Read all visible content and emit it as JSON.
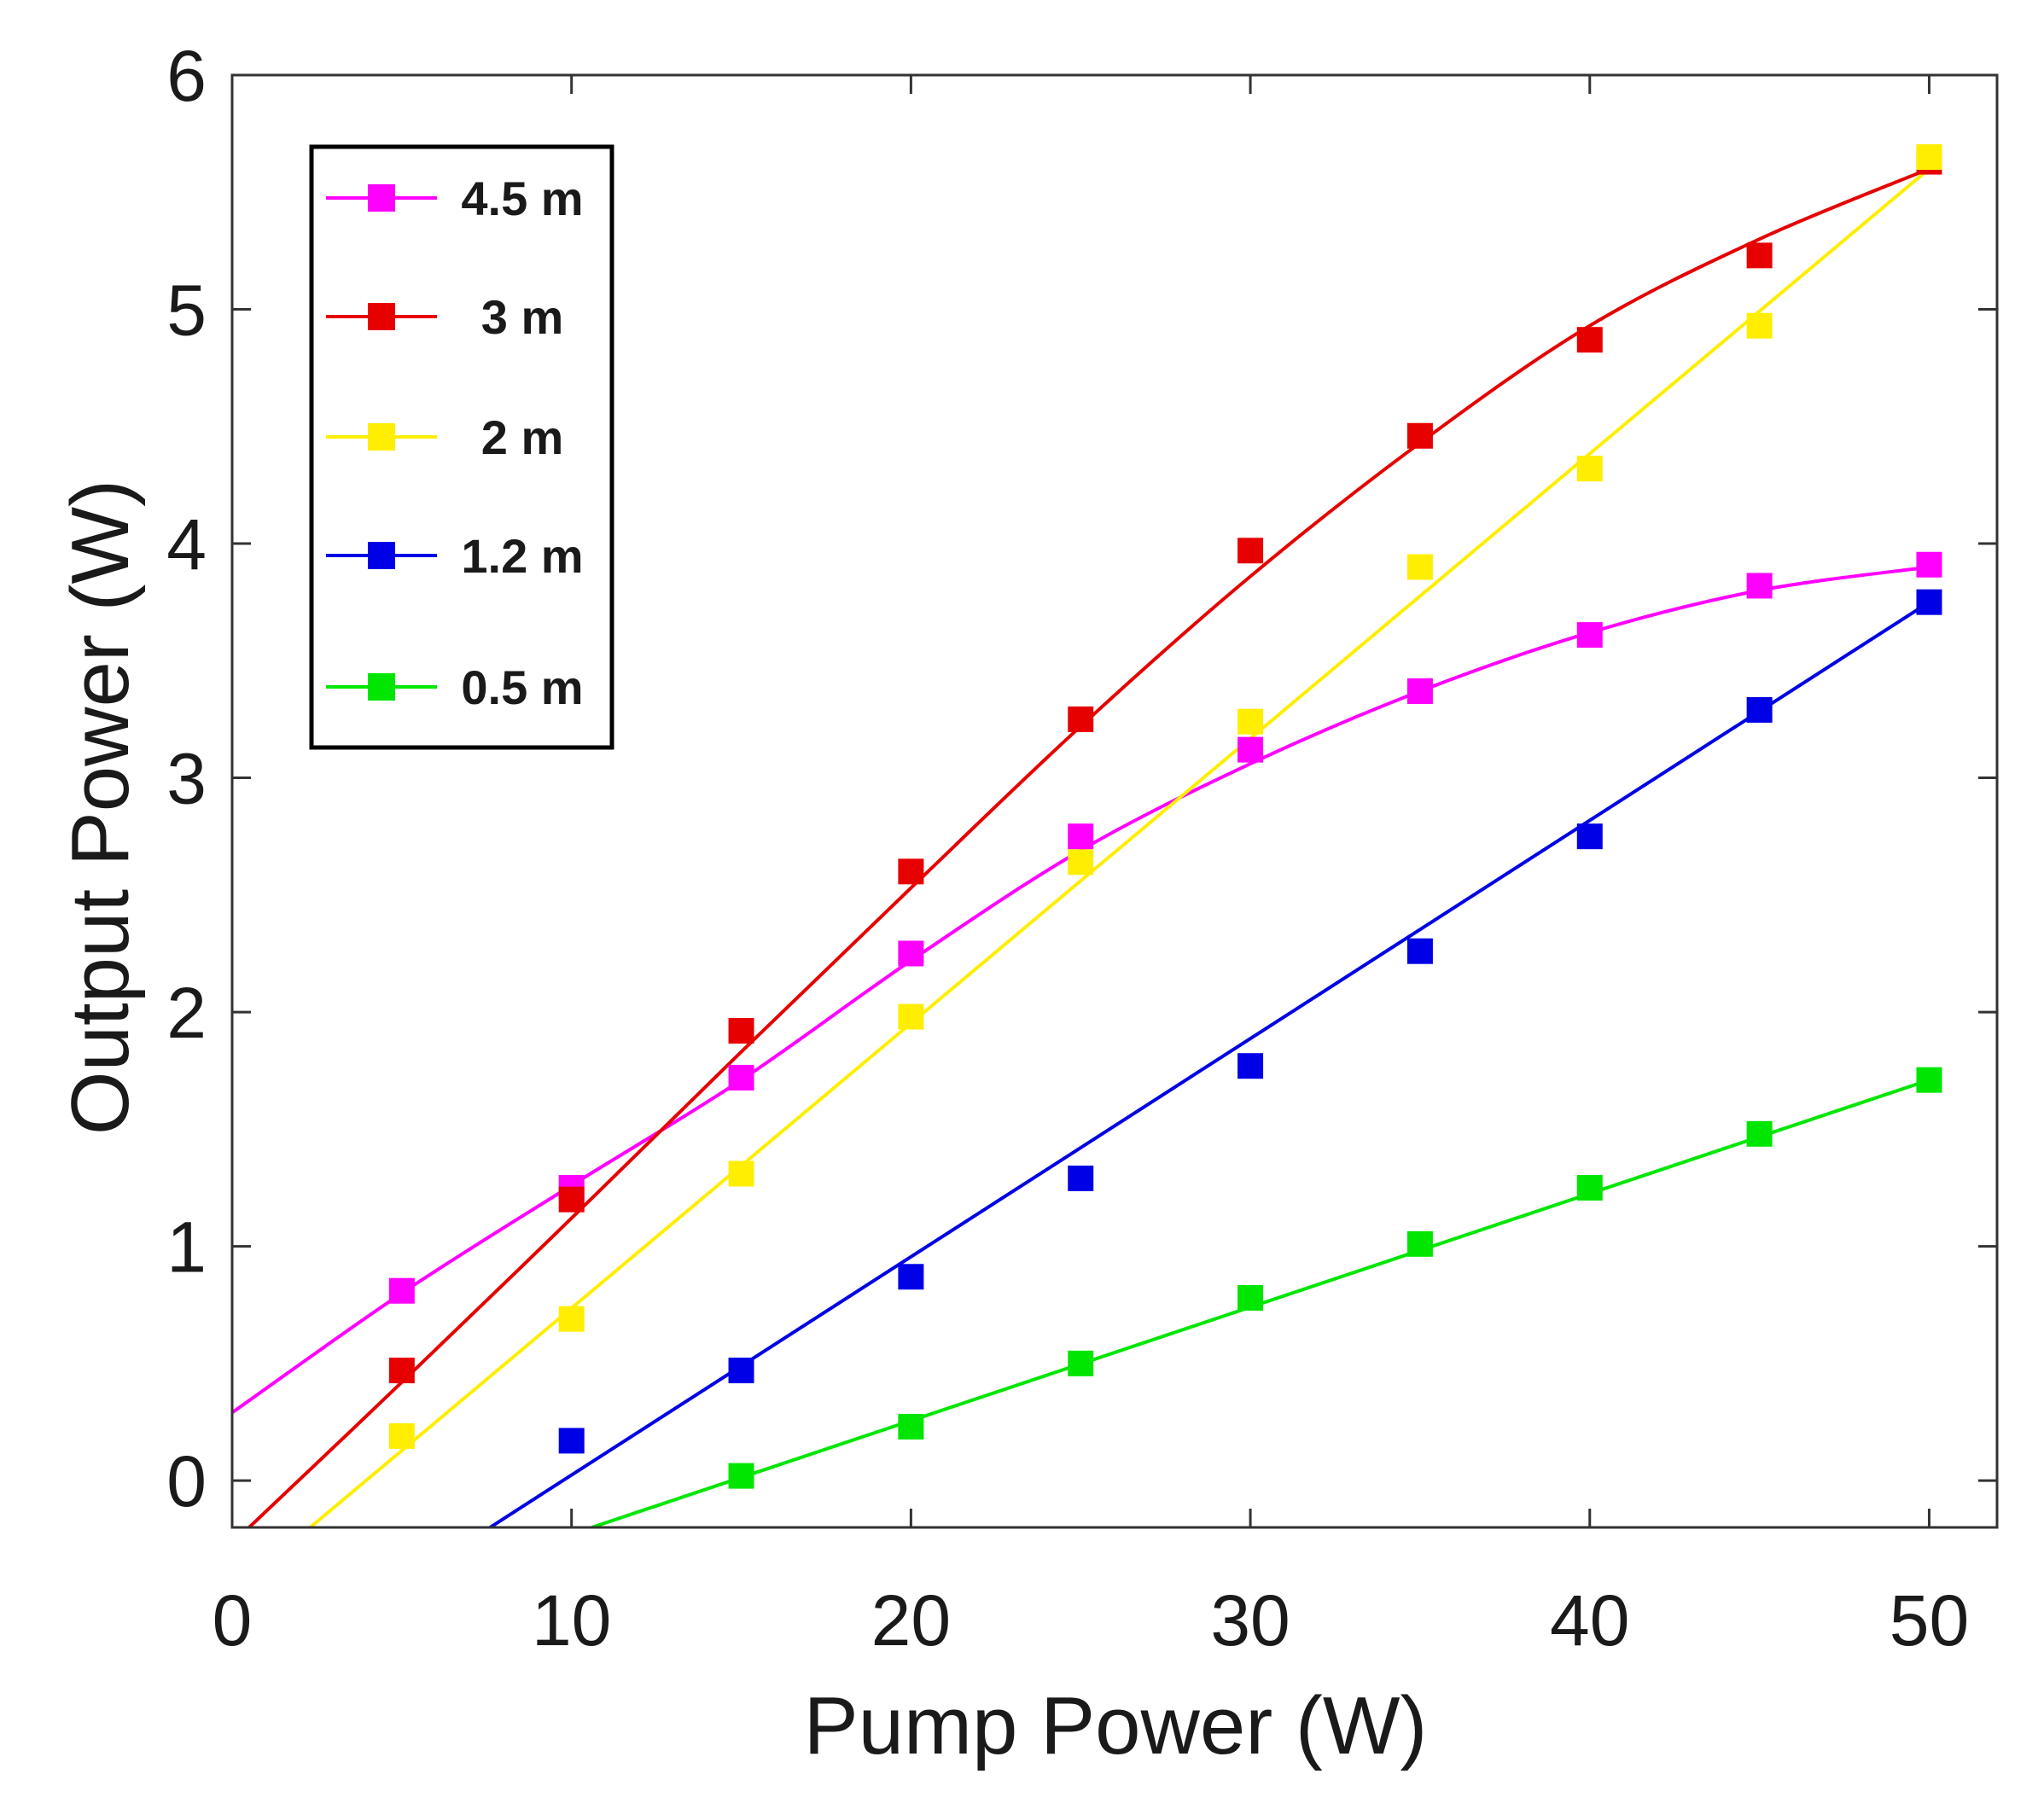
{
  "chart_data": {
    "type": "scatter",
    "title": "",
    "xlabel": "Pump Power (W)",
    "ylabel": "Output Power (W)",
    "xlim": [
      0,
      52
    ],
    "ylim": [
      -0.2,
      6
    ],
    "xticks": [
      0,
      10,
      20,
      30,
      40,
      50
    ],
    "yticks": [
      0,
      1,
      2,
      3,
      4,
      5,
      6
    ],
    "grid": false,
    "legend_position": "top-left",
    "series": [
      {
        "name": "4.5 m",
        "color": "#ff00ff",
        "x": [
          5,
          10,
          15,
          20,
          25,
          30,
          35,
          40,
          45,
          50
        ],
        "values": [
          0.81,
          1.25,
          1.72,
          2.25,
          2.75,
          3.12,
          3.37,
          3.61,
          3.82,
          3.91
        ],
        "fit": {
          "x": [
            0,
            5,
            10,
            15,
            20,
            25,
            30,
            35,
            40,
            45,
            50
          ],
          "y": [
            0.29,
            0.8,
            1.26,
            1.71,
            2.22,
            2.69,
            3.06,
            3.37,
            3.62,
            3.8,
            3.9
          ]
        }
      },
      {
        "name": "3 m",
        "color": "#e60000",
        "x": [
          5,
          10,
          15,
          20,
          25,
          30,
          35,
          40,
          45,
          50
        ],
        "values": [
          0.47,
          1.2,
          1.92,
          2.6,
          3.25,
          3.97,
          4.46,
          4.87,
          5.23,
          5.63
        ],
        "fit": {
          "x": [
            0.5,
            5,
            10,
            15,
            20,
            25,
            30,
            35,
            40,
            45,
            50
          ],
          "y": [
            -0.2,
            0.42,
            1.12,
            1.83,
            2.53,
            3.22,
            3.86,
            4.43,
            4.93,
            5.3,
            5.6
          ]
        }
      },
      {
        "name": "2 m",
        "color": "#ffee00",
        "x": [
          5,
          10,
          15,
          20,
          25,
          30,
          35,
          40,
          45,
          50
        ],
        "values": [
          0.19,
          0.69,
          1.31,
          1.98,
          2.64,
          3.24,
          3.9,
          4.32,
          4.93,
          5.65
        ],
        "fit": {
          "x": [
            2.3,
            50
          ],
          "y": [
            -0.2,
            5.6
          ]
        }
      },
      {
        "name": "1.2 m",
        "color": "#0000e6",
        "x": [
          10,
          15,
          20,
          25,
          30,
          35,
          40,
          45,
          50
        ],
        "values": [
          0.17,
          0.47,
          0.87,
          1.29,
          1.77,
          2.26,
          2.75,
          3.29,
          3.75
        ],
        "fit": {
          "x": [
            7.6,
            50
          ],
          "y": [
            -0.2,
            3.75
          ]
        }
      },
      {
        "name": "0.5 m",
        "color": "#00e600",
        "x": [
          15,
          20,
          25,
          30,
          35,
          40,
          45,
          50
        ],
        "values": [
          0.02,
          0.23,
          0.5,
          0.78,
          1.01,
          1.25,
          1.48,
          1.71
        ],
        "fit": {
          "x": [
            10.6,
            50
          ],
          "y": [
            -0.2,
            1.71
          ]
        }
      }
    ]
  }
}
